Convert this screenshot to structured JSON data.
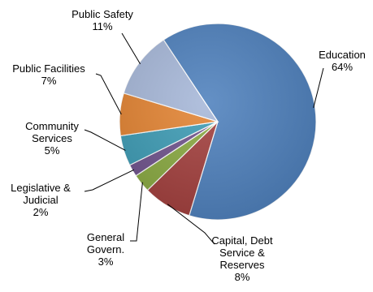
{
  "chart_data": {
    "type": "pie",
    "title": "",
    "slices": [
      {
        "label": "Education",
        "value": 64,
        "percent_label": "64%",
        "color": "#4F81BD"
      },
      {
        "label": "Capital, Debt Service & Reserves",
        "value": 8,
        "percent_label": "8%",
        "color": "#A3403E"
      },
      {
        "label": "General Govern.",
        "value": 3,
        "percent_label": "3%",
        "color": "#8AAA42"
      },
      {
        "label": "Legislative & Judicial",
        "value": 2,
        "percent_label": "2%",
        "color": "#70538D"
      },
      {
        "label": "Community Services",
        "value": 5,
        "percent_label": "5%",
        "color": "#3E9CB5"
      },
      {
        "label": "Public Facilities",
        "value": 7,
        "percent_label": "7%",
        "color": "#E38433"
      },
      {
        "label": "Public Safety",
        "value": 11,
        "percent_label": "11%",
        "color": "#A7B8D9"
      }
    ],
    "legend": "none",
    "data_labels": "outside-with-leader-lines"
  }
}
